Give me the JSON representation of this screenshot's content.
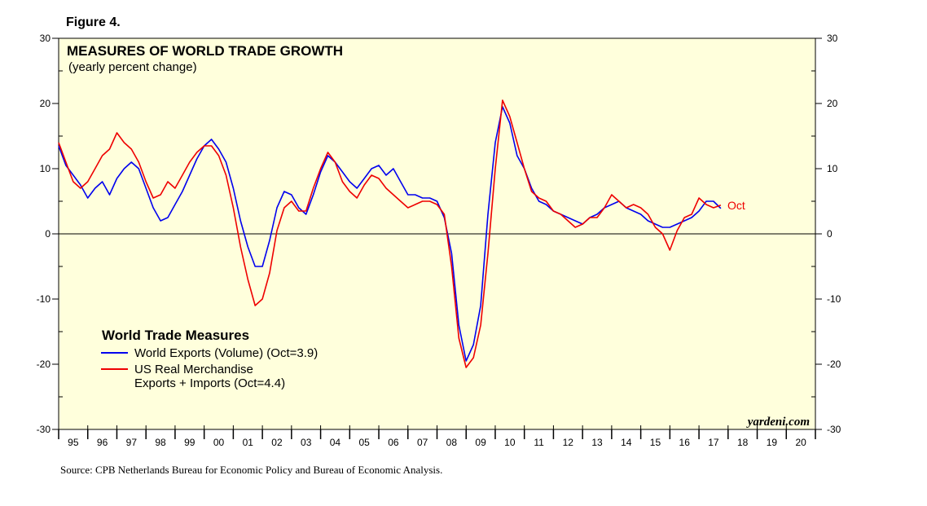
{
  "figure_label": "Figure 4.",
  "source": "Source: CPB Netherlands Bureau for Economic Policy and Bureau of Economic Analysis.",
  "watermark": "yardeni.com",
  "colors": {
    "background": "#ffffdc",
    "blue": "#0000ee",
    "red": "#ee0000"
  },
  "chart_data": {
    "type": "line",
    "title": "MEASURES OF WORLD TRADE GROWTH",
    "subtitle": "(yearly percent change)",
    "ylim": [
      -30,
      30
    ],
    "yticks": [
      -30,
      -20,
      -10,
      0,
      10,
      20,
      30
    ],
    "xlim": [
      1995.0,
      2021.0
    ],
    "x_tick_labels": [
      "95",
      "96",
      "97",
      "98",
      "99",
      "00",
      "01",
      "02",
      "03",
      "04",
      "05",
      "06",
      "07",
      "08",
      "09",
      "10",
      "11",
      "12",
      "13",
      "14",
      "15",
      "16",
      "17",
      "18",
      "19",
      "20"
    ],
    "legend": {
      "title": "World Trade Measures",
      "placement": "lower-left",
      "entries": [
        {
          "lines": [
            "World Exports (Volume) (Oct=3.9)"
          ]
        },
        {
          "lines": [
            "US Real Merchandise",
            "Exports + Imports (Oct=4.4)"
          ]
        }
      ]
    },
    "annotation": "Oct",
    "series": [
      {
        "color": "#0000ee",
        "x": [
          1995.0,
          1995.25,
          1995.5,
          1995.75,
          1996.0,
          1996.25,
          1996.5,
          1996.75,
          1997.0,
          1997.25,
          1997.5,
          1997.75,
          1998.0,
          1998.25,
          1998.5,
          1998.75,
          1999.0,
          1999.25,
          1999.5,
          1999.75,
          2000.0,
          2000.25,
          2000.5,
          2000.75,
          2001.0,
          2001.25,
          2001.5,
          2001.75,
          2002.0,
          2002.25,
          2002.5,
          2002.75,
          2003.0,
          2003.25,
          2003.5,
          2003.75,
          2004.0,
          2004.25,
          2004.5,
          2004.75,
          2005.0,
          2005.25,
          2005.5,
          2005.75,
          2006.0,
          2006.25,
          2006.5,
          2006.75,
          2007.0,
          2007.25,
          2007.5,
          2007.75,
          2008.0,
          2008.25,
          2008.5,
          2008.75,
          2009.0,
          2009.25,
          2009.5,
          2009.75,
          2010.0,
          2010.25,
          2010.5,
          2010.75,
          2011.0,
          2011.25,
          2011.5,
          2011.75,
          2012.0,
          2012.25,
          2012.5,
          2012.75,
          2013.0,
          2013.25,
          2013.5,
          2013.75,
          2014.0,
          2014.25,
          2014.5,
          2014.75,
          2015.0,
          2015.25,
          2015.5,
          2015.75,
          2016.0,
          2016.25,
          2016.5,
          2016.75,
          2017.0,
          2017.25,
          2017.5,
          2017.75
        ],
        "y": [
          13.5,
          10.5,
          9.0,
          7.5,
          5.5,
          7.0,
          8.0,
          6.0,
          8.5,
          10.0,
          11.0,
          10.0,
          7.0,
          4.0,
          2.0,
          2.5,
          4.5,
          6.5,
          9.0,
          11.5,
          13.5,
          14.5,
          13.0,
          11.0,
          7.0,
          2.0,
          -2.0,
          -5.0,
          -5.0,
          -1.0,
          4.0,
          6.5,
          6.0,
          4.0,
          3.0,
          6.0,
          9.5,
          12.0,
          11.0,
          9.5,
          8.0,
          7.0,
          8.5,
          10.0,
          10.5,
          9.0,
          10.0,
          8.0,
          6.0,
          6.0,
          5.5,
          5.5,
          5.0,
          2.5,
          -3.0,
          -14.0,
          -19.5,
          -17.0,
          -11.0,
          3.0,
          14.0,
          19.5,
          17.0,
          12.0,
          10.0,
          7.0,
          5.0,
          4.5,
          3.5,
          3.0,
          2.5,
          2.0,
          1.5,
          2.5,
          3.0,
          4.0,
          4.5,
          5.0,
          4.0,
          3.5,
          3.0,
          2.0,
          1.5,
          1.0,
          1.0,
          1.5,
          2.0,
          2.5,
          3.5,
          5.0,
          5.0,
          3.9
        ]
      },
      {
        "color": "#ee0000",
        "x": [
          1995.0,
          1995.25,
          1995.5,
          1995.75,
          1996.0,
          1996.25,
          1996.5,
          1996.75,
          1997.0,
          1997.25,
          1997.5,
          1997.75,
          1998.0,
          1998.25,
          1998.5,
          1998.75,
          1999.0,
          1999.25,
          1999.5,
          1999.75,
          2000.0,
          2000.25,
          2000.5,
          2000.75,
          2001.0,
          2001.25,
          2001.5,
          2001.75,
          2002.0,
          2002.25,
          2002.5,
          2002.75,
          2003.0,
          2003.25,
          2003.5,
          2003.75,
          2004.0,
          2004.25,
          2004.5,
          2004.75,
          2005.0,
          2005.25,
          2005.5,
          2005.75,
          2006.0,
          2006.25,
          2006.5,
          2006.75,
          2007.0,
          2007.25,
          2007.5,
          2007.75,
          2008.0,
          2008.25,
          2008.5,
          2008.75,
          2009.0,
          2009.25,
          2009.5,
          2009.75,
          2010.0,
          2010.25,
          2010.5,
          2010.75,
          2011.0,
          2011.25,
          2011.5,
          2011.75,
          2012.0,
          2012.25,
          2012.5,
          2012.75,
          2013.0,
          2013.25,
          2013.5,
          2013.75,
          2014.0,
          2014.25,
          2014.5,
          2014.75,
          2015.0,
          2015.25,
          2015.5,
          2015.75,
          2016.0,
          2016.25,
          2016.5,
          2016.75,
          2017.0,
          2017.25,
          2017.5,
          2017.75
        ],
        "y": [
          14.0,
          11.0,
          8.0,
          7.0,
          8.0,
          10.0,
          12.0,
          13.0,
          15.5,
          14.0,
          13.0,
          11.0,
          8.0,
          5.5,
          6.0,
          8.0,
          7.0,
          9.0,
          11.0,
          12.5,
          13.5,
          13.5,
          12.0,
          9.0,
          4.0,
          -2.0,
          -7.0,
          -11.0,
          -10.0,
          -6.0,
          0.5,
          4.0,
          5.0,
          3.5,
          3.5,
          7.0,
          10.0,
          12.5,
          11.0,
          8.0,
          6.5,
          5.5,
          7.5,
          9.0,
          8.5,
          7.0,
          6.0,
          5.0,
          4.0,
          4.5,
          5.0,
          5.0,
          4.5,
          3.0,
          -5.0,
          -16.0,
          -20.5,
          -19.0,
          -14.0,
          -3.0,
          10.0,
          20.5,
          18.0,
          14.0,
          10.0,
          6.5,
          5.5,
          5.0,
          3.5,
          3.0,
          2.0,
          1.0,
          1.5,
          2.5,
          2.5,
          4.0,
          6.0,
          5.0,
          4.0,
          4.5,
          4.0,
          3.0,
          1.0,
          0.0,
          -2.5,
          0.5,
          2.5,
          3.0,
          5.5,
          4.5,
          4.0,
          4.4
        ]
      }
    ]
  }
}
